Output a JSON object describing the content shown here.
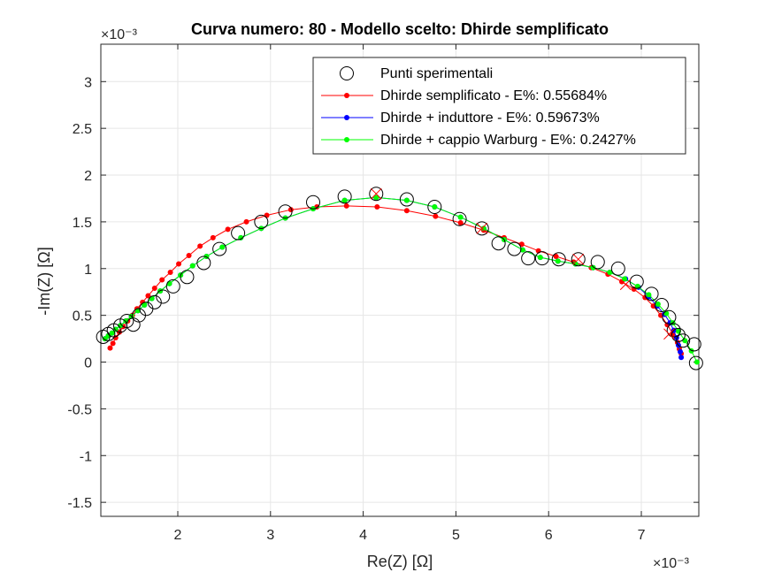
{
  "chart_data": {
    "type": "line",
    "title": "Curva numero: 80 - Modello scelto: Dhirde semplificato",
    "xlabel": "Re(Z) [Ω]",
    "ylabel": "-Im(Z) [Ω]",
    "x_exponent": "×10⁻³",
    "y_exponent": "×10⁻³",
    "xlim": [
      0.00117,
      0.00762
    ],
    "ylim": [
      -0.00165,
      0.0034
    ],
    "x_ticks": [
      0.002,
      0.003,
      0.004,
      0.005,
      0.006,
      0.007
    ],
    "x_tick_labels": [
      "2",
      "3",
      "4",
      "5",
      "6",
      "7"
    ],
    "y_ticks": [
      -0.0015,
      -0.001,
      -0.0005,
      0,
      0.0005,
      0.001,
      0.0015,
      0.002,
      0.0025,
      0.003
    ],
    "y_tick_labels": [
      "-1.5",
      "-1",
      "-0.5",
      "0",
      "0.5",
      "1",
      "1.5",
      "2",
      "2.5",
      "3"
    ],
    "grid": true,
    "legend_position": "top-right",
    "colors": {
      "experimental": "#000000",
      "s1": "#ff0000",
      "s2": "#0000ff",
      "s3": "#00ff00",
      "excluded": "#ff0000"
    },
    "series": [
      {
        "name": "Punti sperimentali",
        "marker": "circle",
        "x": [
          0.001195,
          0.00125,
          0.00131,
          0.00138,
          0.00145,
          0.00152,
          0.00158,
          0.00166,
          0.00175,
          0.00184,
          0.00195,
          0.0021,
          0.00228,
          0.00245,
          0.00265,
          0.0029,
          0.00316,
          0.00346,
          0.0038,
          0.00414,
          0.00447,
          0.00477,
          0.00504,
          0.00528,
          0.00546,
          0.00563,
          0.00578,
          0.00593,
          0.00611,
          0.00632,
          0.00653,
          0.00675,
          0.00695,
          0.00711,
          0.00722,
          0.0073,
          0.00735,
          0.0074,
          0.00745,
          0.00757,
          0.00759
        ],
        "y": [
          0.00027,
          0.0003,
          0.00034,
          0.00039,
          0.00044,
          0.0004,
          0.0005,
          0.00057,
          0.00064,
          0.0007,
          0.00081,
          0.00091,
          0.00106,
          0.00121,
          0.00138,
          0.0015,
          0.00161,
          0.00171,
          0.00177,
          0.0018,
          0.00174,
          0.00166,
          0.00153,
          0.00143,
          0.00127,
          0.00121,
          0.00111,
          0.00111,
          0.0011,
          0.0011,
          0.00107,
          0.001,
          0.00086,
          0.00073,
          0.00061,
          0.00048,
          0.00034,
          0.00029,
          0.00023,
          0.00019,
          -1e-05
        ]
      },
      {
        "name": "Dhirde semplificato - E%: 0.55684%",
        "marker": "dot",
        "x": [
          0.00127,
          0.0013,
          0.00133,
          0.00137,
          0.00141,
          0.00146,
          0.00151,
          0.00156,
          0.00162,
          0.00168,
          0.00175,
          0.00183,
          0.00192,
          0.00201,
          0.00212,
          0.00224,
          0.00238,
          0.00254,
          0.00274,
          0.00296,
          0.00322,
          0.0035,
          0.00382,
          0.00415,
          0.00447,
          0.00478,
          0.00505,
          0.0053,
          0.00552,
          0.00571,
          0.00589,
          0.00608,
          0.00627,
          0.00646,
          0.00664,
          0.00679,
          0.00692,
          0.00704,
          0.00713,
          0.00721,
          0.00728,
          0.00734,
          0.00739,
          0.00741,
          0.00743
        ],
        "y": [
          0.00015,
          0.0002,
          0.00026,
          0.00032,
          0.00038,
          0.00044,
          0.0005,
          0.00057,
          0.00064,
          0.00071,
          0.00079,
          0.00088,
          0.00096,
          0.00105,
          0.00114,
          0.00124,
          0.00133,
          0.00142,
          0.0015,
          0.00157,
          0.00163,
          0.00166,
          0.00167,
          0.00166,
          0.00162,
          0.00156,
          0.00149,
          0.00141,
          0.00133,
          0.00126,
          0.00119,
          0.00113,
          0.00107,
          0.00101,
          0.00094,
          0.00086,
          0.00078,
          0.00069,
          0.0006,
          0.0005,
          0.0004,
          0.0003,
          0.00021,
          0.00014,
          9e-05
        ]
      },
      {
        "name": "Dhirde + induttore - E%: 0.59673%",
        "marker": "dot",
        "x": [
          0.001215,
          0.00125,
          0.00129,
          0.00133,
          0.00138,
          0.00144,
          0.0015,
          0.00157,
          0.00164,
          0.00172,
          0.00181,
          0.00191,
          0.00203,
          0.00216,
          0.00231,
          0.00248,
          0.00268,
          0.0029,
          0.00316,
          0.00346,
          0.0038,
          0.00414,
          0.00447,
          0.00477,
          0.00505,
          0.0053,
          0.00552,
          0.00572,
          0.00591,
          0.0061,
          0.00629,
          0.00648,
          0.00666,
          0.00683,
          0.00697,
          0.00708,
          0.00717,
          0.00725,
          0.00731,
          0.00735,
          0.00738,
          0.0074,
          0.00742,
          0.00743
        ],
        "y": [
          0.00025,
          0.00028,
          0.00031,
          0.00035,
          0.00039,
          0.00044,
          0.00049,
          0.00055,
          0.00061,
          0.00068,
          0.00076,
          0.00084,
          0.00093,
          0.00103,
          0.00113,
          0.00123,
          0.00133,
          0.00143,
          0.00154,
          0.00164,
          0.00173,
          0.00176,
          0.00173,
          0.00166,
          0.00155,
          0.00143,
          0.00131,
          0.0012,
          0.00112,
          0.00108,
          0.00105,
          0.00101,
          0.00096,
          0.00089,
          0.0008,
          0.0007,
          0.0006,
          0.00051,
          0.00042,
          0.00034,
          0.00026,
          0.00018,
          0.00011,
          5e-05
        ]
      },
      {
        "name": "Dhirde + cappio Warburg - E%: 0.2427%",
        "marker": "dot",
        "x": [
          0.001215,
          0.00125,
          0.00129,
          0.00133,
          0.00138,
          0.00144,
          0.0015,
          0.00157,
          0.00164,
          0.00172,
          0.00181,
          0.00191,
          0.00203,
          0.00216,
          0.00231,
          0.00248,
          0.00268,
          0.0029,
          0.00316,
          0.00346,
          0.0038,
          0.00414,
          0.00447,
          0.00477,
          0.00505,
          0.0053,
          0.00552,
          0.00572,
          0.00591,
          0.0061,
          0.00629,
          0.00648,
          0.00666,
          0.00682,
          0.00696,
          0.00708,
          0.00718,
          0.00727,
          0.00734,
          0.0074,
          0.00747,
          0.00754,
          0.0076
        ],
        "y": [
          0.00025,
          0.00028,
          0.00031,
          0.00035,
          0.00039,
          0.00044,
          0.00049,
          0.00055,
          0.00061,
          0.00068,
          0.00076,
          0.00084,
          0.00093,
          0.00103,
          0.00113,
          0.00123,
          0.00133,
          0.00143,
          0.00154,
          0.00164,
          0.00173,
          0.00176,
          0.00173,
          0.00166,
          0.00155,
          0.00143,
          0.00131,
          0.0012,
          0.00112,
          0.00108,
          0.00105,
          0.00101,
          0.00096,
          0.00089,
          0.00081,
          0.00072,
          0.00062,
          0.00052,
          0.00042,
          0.00033,
          0.00023,
          0.00012,
          0.0
        ]
      }
    ],
    "excluded_points": {
      "x": [
        0.00414,
        0.00528,
        0.00632,
        0.00683,
        0.0073
      ],
      "y": [
        0.0018,
        0.00143,
        0.0011,
        0.00083,
        0.0003
      ]
    }
  }
}
